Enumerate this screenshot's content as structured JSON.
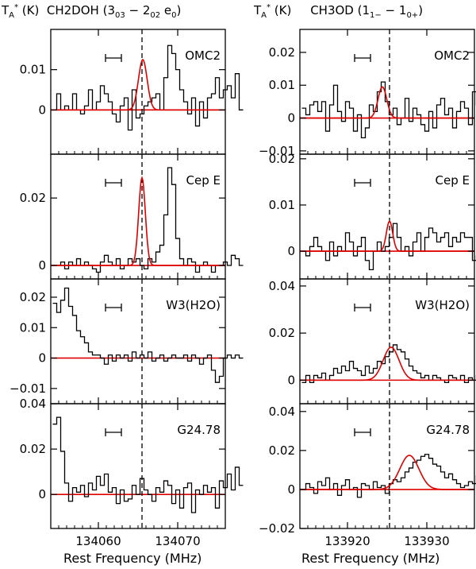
{
  "headers": {
    "left": {
      "unit": "(K)",
      "species": "CH2DOH",
      "transition": "(303 − 202 e0)"
    },
    "right": {
      "unit": "(K)",
      "species": "CH3OD",
      "transition": "(11− − 10+)"
    }
  },
  "ylabel_symbol": "TA*",
  "chart_data": [
    {
      "type": "line",
      "panel": "left-1",
      "source": "OMC2",
      "xlim": [
        134054,
        134076
      ],
      "ylim": [
        -0.011,
        0.02
      ],
      "yticks": [
        0,
        0.01
      ],
      "ytick_labels": [
        "0",
        "0.01"
      ],
      "xticks": [
        134060,
        134070
      ],
      "vline": 134065.5,
      "velocity_bar": [
        134060.9,
        134062.9
      ],
      "x0": 134054.5,
      "dx": 0.5,
      "spectrum": [
        0.0,
        0.004,
        0.0,
        0.001,
        0.0,
        0.004,
        0.0,
        -0.001,
        0.001,
        0.005,
        0.0,
        0.002,
        0.006,
        0.004,
        0.002,
        -0.001,
        -0.003,
        0.001,
        0.003,
        -0.005,
        0.005,
        -0.002,
        -0.001,
        0.001,
        0.002,
        0.003,
        0.004,
        0.0,
        0.008,
        0.016,
        0.014,
        0.01,
        0.005,
        0.002,
        -0.001,
        0.003,
        -0.004,
        0.002,
        -0.002,
        0.003,
        0.004,
        0.008,
        0.003,
        0.005,
        0.006,
        0.003,
        0.009,
        0.0
      ],
      "fit": {
        "amp": 0.0125,
        "center": 134065.6,
        "sigma": 0.55
      }
    },
    {
      "type": "line",
      "panel": "left-2",
      "source": "Cep E",
      "xlim": [
        134054,
        134076
      ],
      "ylim": [
        -0.004,
        0.033
      ],
      "yticks": [
        0,
        0.02
      ],
      "ytick_labels": [
        "0",
        "0.02"
      ],
      "xticks": [
        134060,
        134070
      ],
      "vline": 134065.5,
      "velocity_bar": [
        134060.9,
        134062.9
      ],
      "x0": 134054.5,
      "dx": 0.5,
      "spectrum": [
        0.0,
        0.0,
        0.001,
        -0.001,
        0.001,
        0.0,
        0.002,
        0.0,
        0.001,
        0.0,
        -0.001,
        -0.002,
        0.001,
        0.003,
        0.001,
        0.0,
        0.002,
        -0.001,
        0.0,
        0.002,
        0.001,
        0.002,
        0.0,
        -0.001,
        0.002,
        0.001,
        0.004,
        0.006,
        0.015,
        0.029,
        0.024,
        0.008,
        0.002,
        0.0,
        0.002,
        0.001,
        -0.002,
        0.0,
        0.001,
        0.0,
        -0.002,
        0.0,
        0.0,
        0.001,
        0.0,
        0.003,
        0.002,
        0.0
      ],
      "fit": {
        "amp": 0.026,
        "center": 134065.5,
        "sigma": 0.42
      }
    },
    {
      "type": "line",
      "panel": "left-3",
      "source": "W3(H2O)",
      "xlim": [
        134054,
        134076
      ],
      "ylim": [
        -0.015,
        0.026
      ],
      "yticks": [
        -0.01,
        0,
        0.01,
        0.02
      ],
      "ytick_labels": [
        "−0.01",
        "0",
        "0.01",
        "0.02"
      ],
      "xticks": [
        134060,
        134070
      ],
      "vline": 134065.5,
      "velocity_bar": [
        134060.9,
        134062.9
      ],
      "x0": 134054.5,
      "dx": 0.5,
      "spectrum": [
        0.018,
        0.015,
        0.019,
        0.023,
        0.017,
        0.014,
        0.009,
        0.007,
        0.005,
        0.002,
        0.001,
        0.001,
        0.0,
        -0.002,
        0.001,
        -0.001,
        0.001,
        0.0,
        0.001,
        -0.001,
        0.002,
        0.0,
        0.001,
        0.0,
        0.002,
        -0.001,
        0.0,
        0.001,
        -0.001,
        0.0,
        0.001,
        0.0,
        0.0,
        0.001,
        -0.001,
        0.001,
        0.0,
        -0.002,
        0.0,
        0.001,
        -0.004,
        -0.008,
        -0.006,
        0.0,
        0.001,
        0.0,
        0.001,
        0.0
      ],
      "fit": {
        "amp": 0.0,
        "center": 134065.5,
        "sigma": 1.0
      }
    },
    {
      "type": "line",
      "panel": "left-4",
      "source": "G24.78",
      "xlim": [
        134054,
        134076
      ],
      "ylim": [
        -0.015,
        0.04
      ],
      "yticks": [
        0,
        0.02,
        0.04
      ],
      "ytick_labels": [
        "0",
        "0.02",
        "0.04"
      ],
      "xticks": [
        134060,
        134070
      ],
      "xtick_labels": [
        "134060",
        "134070"
      ],
      "vline": 134065.5,
      "velocity_bar": [
        134060.9,
        134062.9
      ],
      "x0": 134054.5,
      "dx": 0.5,
      "spectrum": [
        0.031,
        0.034,
        0.019,
        0.005,
        -0.003,
        0.003,
        0.001,
        0.004,
        -0.001,
        0.005,
        0.002,
        0.008,
        0.004,
        0.009,
        0.001,
        0.003,
        -0.004,
        0.002,
        -0.003,
        -0.002,
        0.004,
        0.0,
        0.007,
        0.002,
        0.0,
        -0.003,
        0.003,
        0.001,
        0.006,
        0.004,
        -0.004,
        0.002,
        -0.006,
        0.003,
        0.005,
        -0.008,
        0.002,
        0.0,
        0.004,
        0.001,
        0.003,
        -0.006,
        0.006,
        0.003,
        0.009,
        0.002,
        0.012,
        0.004
      ],
      "fit": {
        "amp": 0.0,
        "center": 134065.5,
        "sigma": 1.0
      }
    },
    {
      "type": "line",
      "panel": "right-1",
      "source": "OMC2",
      "xlim": [
        133914,
        133936
      ],
      "ylim": [
        -0.011,
        0.027
      ],
      "yticks": [
        -0.01,
        0,
        0.01,
        0.02
      ],
      "ytick_labels": [
        "−0.01",
        "0",
        "0.01",
        "0.02"
      ],
      "xticks": [
        133920,
        133930
      ],
      "vline": 133925.3,
      "velocity_bar": [
        133920.9,
        133922.9
      ],
      "x0": 133914.5,
      "dx": 0.5,
      "spectrum": [
        0.003,
        0.001,
        0.004,
        0.005,
        0.002,
        0.005,
        -0.004,
        0.004,
        0.01,
        0.002,
        -0.001,
        0.005,
        0.003,
        -0.004,
        0.001,
        -0.006,
        -0.003,
        0.004,
        0.002,
        0.008,
        0.011,
        0.005,
        0.001,
        0.003,
        -0.002,
        0.0,
        0.006,
        -0.001,
        0.003,
        0.001,
        -0.002,
        -0.004,
        0.002,
        -0.003,
        0.004,
        0.006,
        0.001,
        0.003,
        -0.003,
        0.002,
        0.005,
        0.003,
        -0.002,
        0.008,
        0.004,
        0.002,
        0.007,
        0.0
      ],
      "fit": {
        "amp": 0.0095,
        "center": 133924.4,
        "sigma": 0.55
      }
    },
    {
      "type": "line",
      "panel": "right-2",
      "source": "Cep E",
      "xlim": [
        133914,
        133936
      ],
      "ylim": [
        -0.006,
        0.021
      ],
      "yticks": [
        0,
        0.01,
        0.02
      ],
      "ytick_labels": [
        "0",
        "0.01",
        "0.02"
      ],
      "xticks": [
        133920,
        133930
      ],
      "vline": 133925.3,
      "velocity_bar": [
        133920.9,
        133922.9
      ],
      "x0": 133914.5,
      "dx": 0.5,
      "spectrum": [
        0.0,
        -0.001,
        0.001,
        0.003,
        0.001,
        0.0,
        -0.002,
        0.002,
        -0.001,
        0.001,
        0.0,
        0.004,
        0.002,
        -0.001,
        0.001,
        0.003,
        -0.002,
        -0.004,
        0.0,
        0.002,
        0.0,
        0.001,
        0.003,
        0.006,
        0.003,
        0.0,
        0.001,
        -0.001,
        0.002,
        0.004,
        0.0,
        0.003,
        0.005,
        0.004,
        0.002,
        0.003,
        0.004,
        0.001,
        0.003,
        0.002,
        0.004,
        0.003,
        0.003,
        -0.002,
        -0.001,
        -0.003,
        -0.004,
        0.0
      ],
      "fit": {
        "amp": 0.0065,
        "center": 133925.3,
        "sigma": 0.4
      }
    },
    {
      "type": "line",
      "panel": "right-3",
      "source": "W3(H2O)",
      "xlim": [
        133914,
        133936
      ],
      "ylim": [
        -0.01,
        0.043
      ],
      "yticks": [
        0,
        0.02,
        0.04
      ],
      "ytick_labels": [
        "0",
        "0.02",
        "0.04"
      ],
      "xticks": [
        133920,
        133930
      ],
      "vline": 133925.3,
      "velocity_bar": [
        133920.9,
        133922.9
      ],
      "x0": 133914.5,
      "dx": 0.5,
      "spectrum": [
        -0.001,
        0.002,
        -0.001,
        0.002,
        0.001,
        0.003,
        0.0,
        0.002,
        0.005,
        0.003,
        0.006,
        0.004,
        0.008,
        0.005,
        0.004,
        0.002,
        0.006,
        0.003,
        0.005,
        0.008,
        0.007,
        0.01,
        0.012,
        0.015,
        0.013,
        0.012,
        0.009,
        0.006,
        0.004,
        0.003,
        0.001,
        0.002,
        0.0,
        0.002,
        0.001,
        0.0,
        -0.001,
        0.002,
        0.001,
        0.0,
        0.002,
        -0.001,
        0.001,
        0.0,
        0.002,
        0.001,
        0.0,
        0.001
      ],
      "fit": {
        "amp": 0.014,
        "center": 133925.5,
        "sigma": 1.0
      }
    },
    {
      "type": "line",
      "panel": "right-4",
      "source": "G24.78",
      "xlim": [
        133914,
        133936
      ],
      "ylim": [
        -0.02,
        0.044
      ],
      "yticks": [
        -0.02,
        0,
        0.02,
        0.04
      ],
      "ytick_labels": [
        "−0.02",
        "0",
        "0.02",
        "0.04"
      ],
      "xticks": [
        133920,
        133930
      ],
      "xtick_labels": [
        "133920",
        "133930"
      ],
      "vline": 133925.3,
      "velocity_bar": [
        133920.9,
        133922.9
      ],
      "x0": 133914.5,
      "dx": 0.5,
      "spectrum": [
        0.0,
        0.003,
        0.001,
        -0.002,
        0.004,
        0.002,
        0.006,
        0.0,
        0.003,
        -0.003,
        0.002,
        0.005,
        0.0,
        0.001,
        -0.004,
        0.003,
        0.002,
        0.0,
        0.004,
        0.001,
        0.002,
        -0.002,
        0.003,
        0.005,
        0.004,
        0.006,
        0.009,
        0.011,
        0.014,
        0.015,
        0.017,
        0.018,
        0.016,
        0.013,
        0.012,
        0.009,
        0.006,
        0.008,
        0.005,
        0.003,
        0.001,
        0.002,
        0.004,
        0.003,
        0.007,
        0.005,
        0.012,
        0.014
      ],
      "fit": {
        "amp": 0.0175,
        "center": 133927.8,
        "sigma": 1.2
      }
    }
  ],
  "xlabel": "Rest Frequency (MHz)"
}
